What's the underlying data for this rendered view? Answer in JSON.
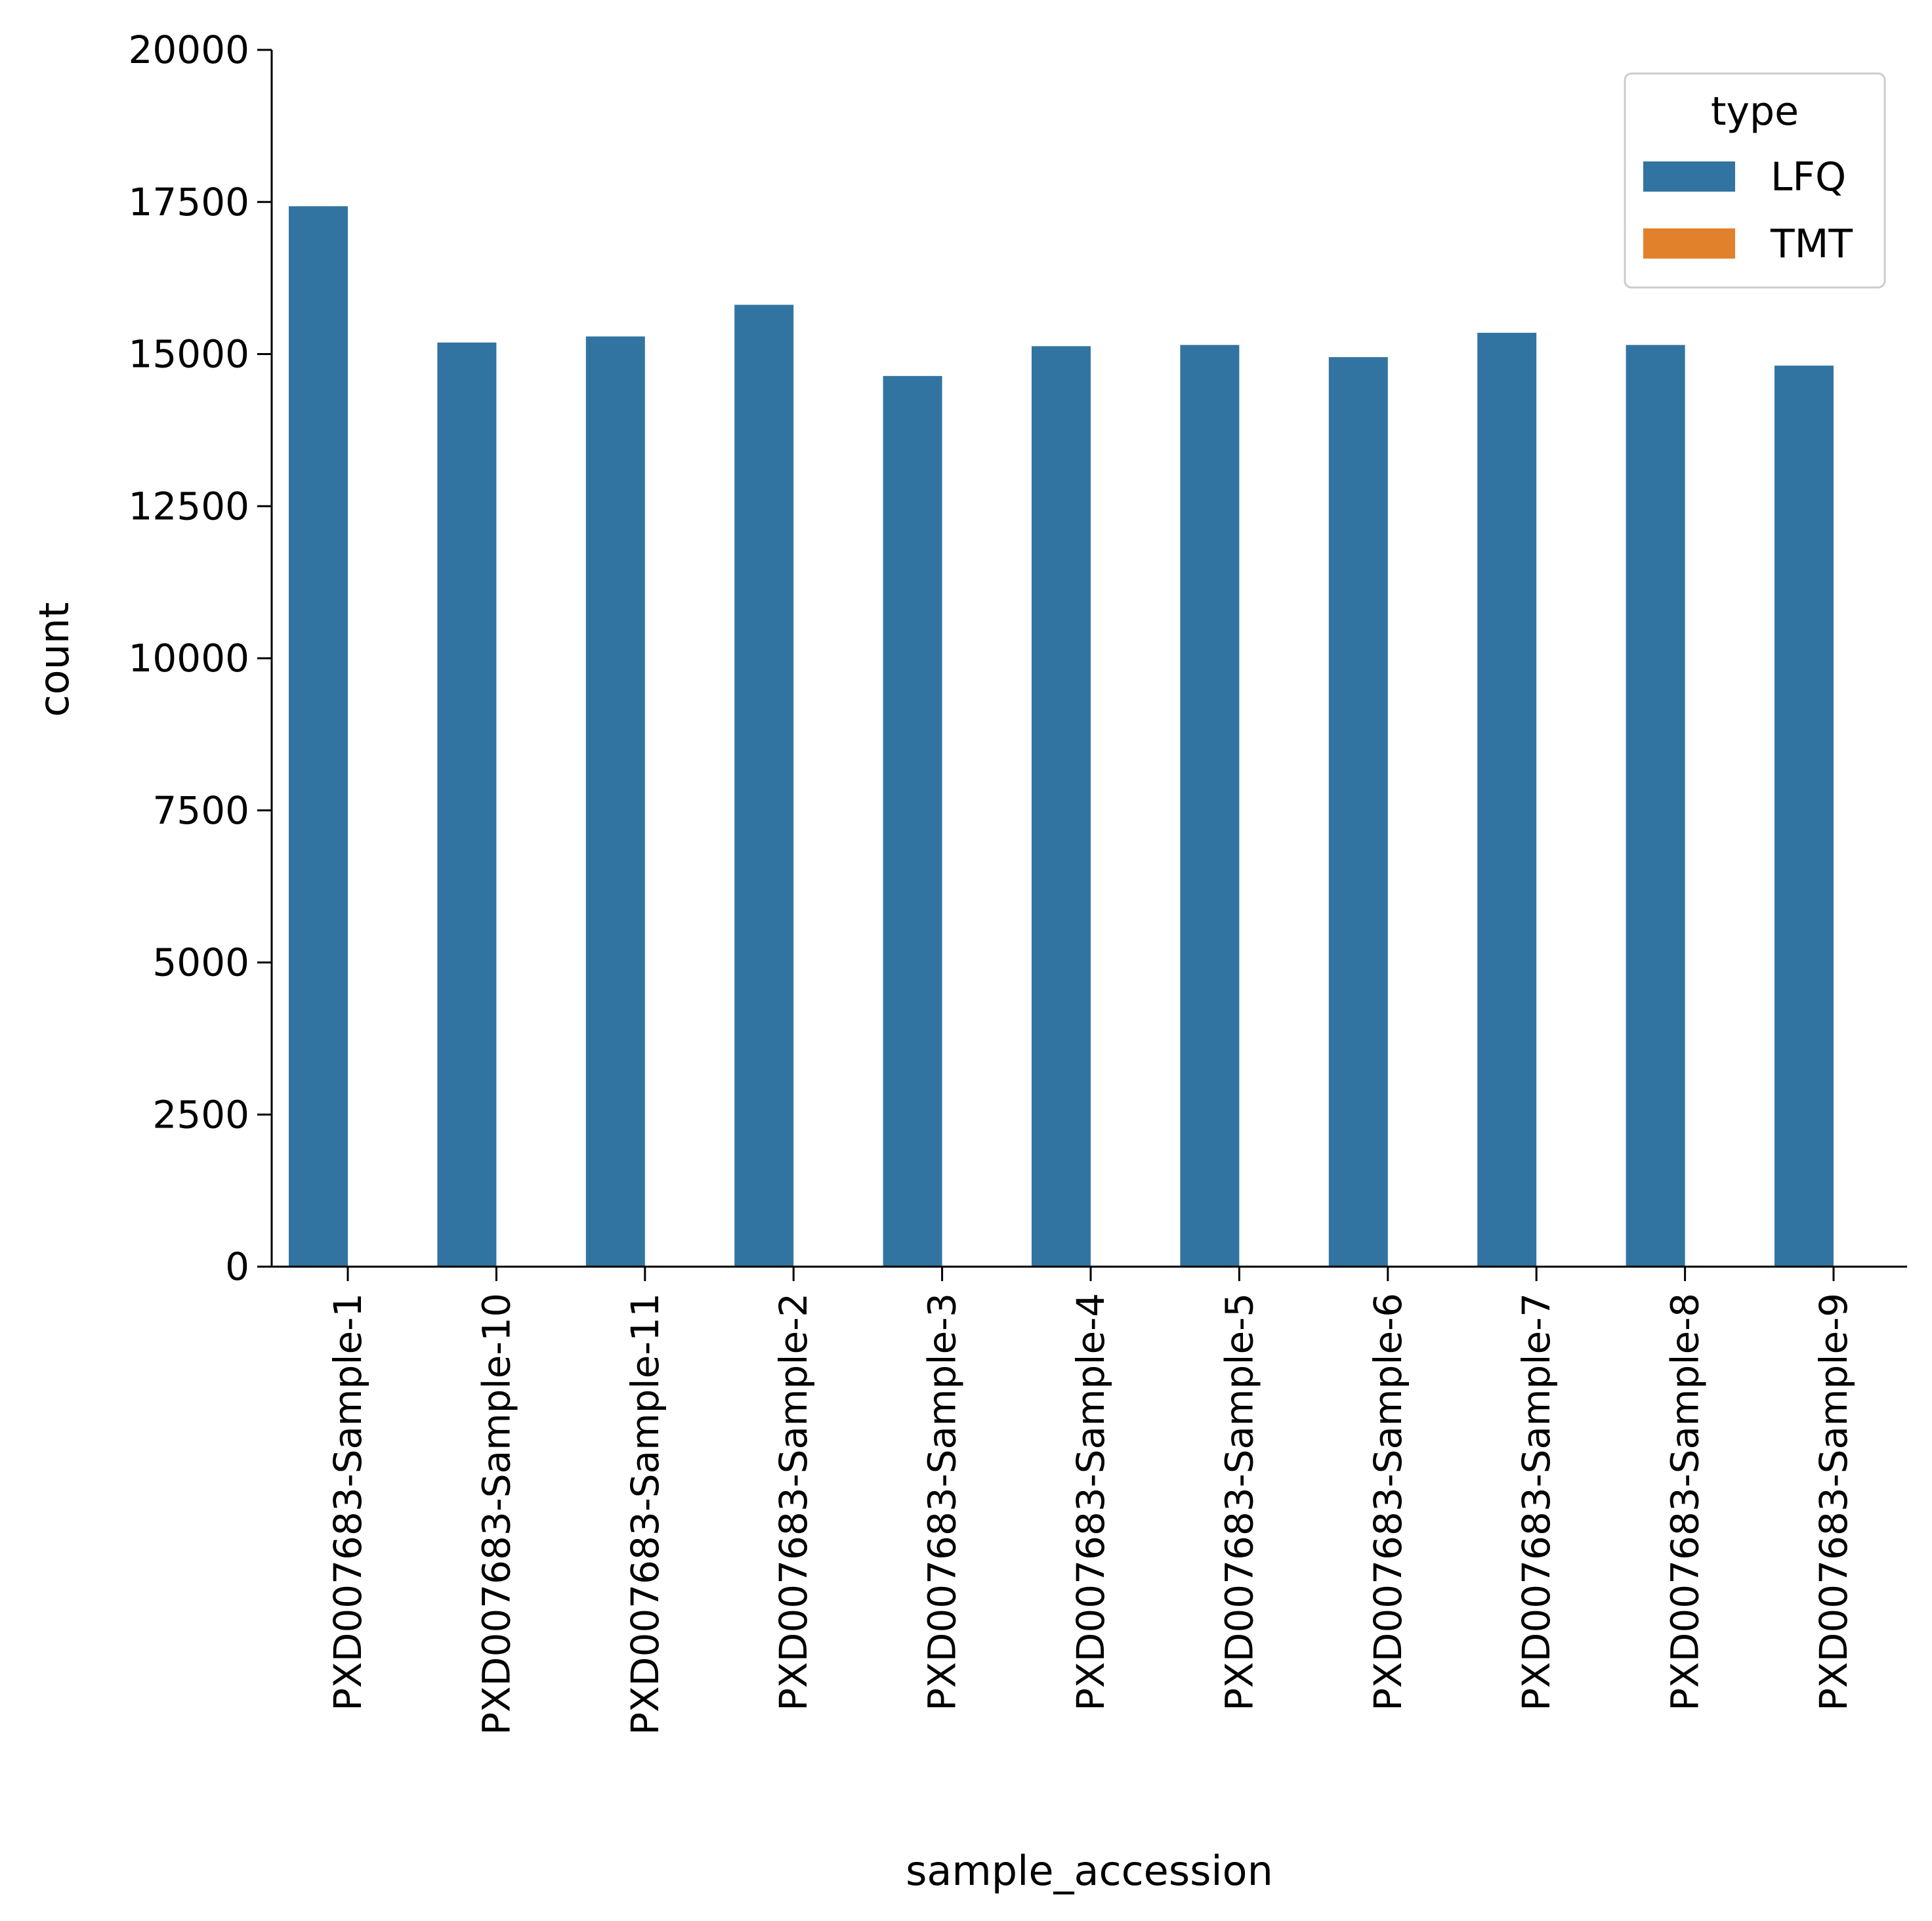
{
  "chart_data": {
    "type": "bar",
    "xlabel": "sample_accession",
    "ylabel": "count",
    "ylim": [
      0,
      20000
    ],
    "yticks": [
      0,
      2500,
      5000,
      7500,
      10000,
      12500,
      15000,
      17500,
      20000
    ],
    "categories": [
      "PXD007683-Sample-1",
      "PXD007683-Sample-10",
      "PXD007683-Sample-11",
      "PXD007683-Sample-2",
      "PXD007683-Sample-3",
      "PXD007683-Sample-4",
      "PXD007683-Sample-5",
      "PXD007683-Sample-6",
      "PXD007683-Sample-7",
      "PXD007683-Sample-8",
      "PXD007683-Sample-9"
    ],
    "series": [
      {
        "name": "LFQ",
        "color": "#3274a1",
        "values": [
          17430,
          15190,
          15290,
          15810,
          14640,
          15130,
          15150,
          14950,
          15350,
          15150,
          14810
        ]
      },
      {
        "name": "TMT",
        "color": "#e1812c",
        "values": [
          0,
          0,
          0,
          0,
          0,
          0,
          0,
          0,
          0,
          0,
          0
        ]
      }
    ],
    "legend": {
      "title": "type",
      "placement": "top-right"
    },
    "grid": false
  }
}
